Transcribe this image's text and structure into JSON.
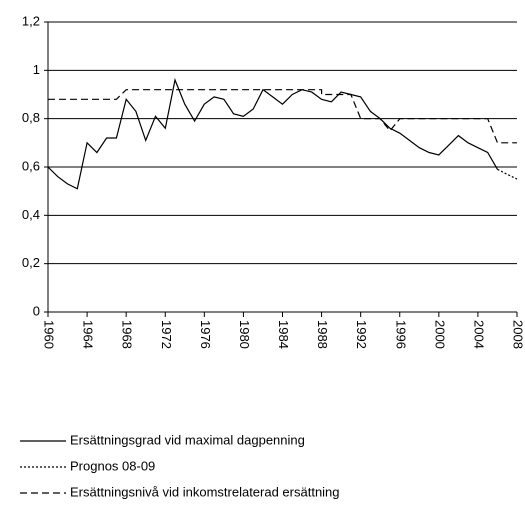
{
  "chart_data": {
    "type": "line",
    "xlim": [
      1960,
      2008
    ],
    "xticks": [
      1960,
      1964,
      1968,
      1972,
      1976,
      1980,
      1984,
      1988,
      1992,
      1996,
      2000,
      2004,
      2008
    ],
    "ylim": [
      0,
      1.2
    ],
    "yticks": [
      0,
      {
        "value": 0.2,
        "label": "0,2"
      },
      {
        "value": 0.4,
        "label": "0,4"
      },
      {
        "value": 0.6,
        "label": "0,6"
      },
      {
        "value": 0.8,
        "label": "0,8"
      },
      1,
      {
        "value": 1.2,
        "label": "1,2"
      }
    ],
    "grid": true,
    "legend": "bottom-left",
    "series": [
      {
        "name": "Ersättningsgrad vid maximal dagpenning",
        "color": "#000000",
        "style": "solid",
        "x": [
          1960,
          1961,
          1962,
          1963,
          1964,
          1965,
          1966,
          1967,
          1968,
          1969,
          1970,
          1971,
          1972,
          1973,
          1974,
          1975,
          1976,
          1977,
          1978,
          1979,
          1980,
          1981,
          1982,
          1983,
          1984,
          1985,
          1986,
          1987,
          1988,
          1989,
          1990,
          1991,
          1992,
          1993,
          1994,
          1995,
          1996,
          1997,
          1998,
          1999,
          2000,
          2001,
          2002,
          2003,
          2004,
          2005,
          2006
        ],
        "values": [
          0.6,
          0.56,
          0.53,
          0.51,
          0.7,
          0.66,
          0.72,
          0.72,
          0.88,
          0.83,
          0.71,
          0.81,
          0.76,
          0.96,
          0.86,
          0.79,
          0.86,
          0.89,
          0.88,
          0.82,
          0.81,
          0.84,
          0.92,
          0.89,
          0.86,
          0.9,
          0.92,
          0.91,
          0.88,
          0.87,
          0.91,
          0.9,
          0.89,
          0.83,
          0.8,
          0.76,
          0.74,
          0.71,
          0.68,
          0.66,
          0.65,
          0.69,
          0.73,
          0.7,
          0.68,
          0.66,
          0.59
        ]
      },
      {
        "name": "Prognos 08-09",
        "color": "#000000",
        "style": "dotted",
        "x": [
          2006,
          2007,
          2008
        ],
        "values": [
          0.59,
          0.57,
          0.55
        ]
      },
      {
        "name": "Ersättningsnivå vid inkomstrelaterad ersättning",
        "color": "#000000",
        "style": "dashed",
        "x": [
          1960,
          1967,
          1968,
          1988,
          1988,
          1991,
          1992,
          1994,
          1995,
          1996,
          2005,
          2006,
          2008
        ],
        "values": [
          0.88,
          0.88,
          0.92,
          0.92,
          0.9,
          0.9,
          0.8,
          0.8,
          0.75,
          0.8,
          0.8,
          0.7,
          0.7
        ]
      }
    ]
  }
}
